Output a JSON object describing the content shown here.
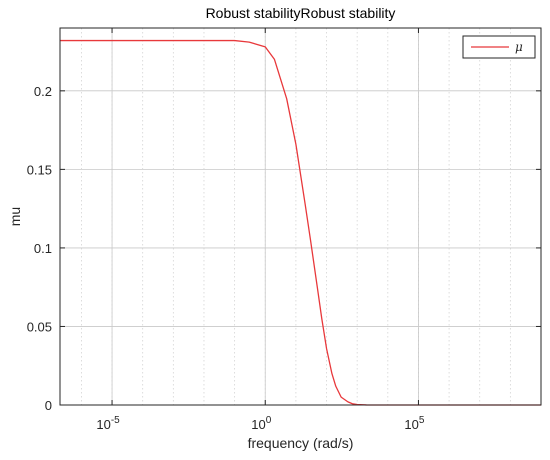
{
  "chart_data": {
    "type": "line",
    "title": "Robust stabilityRobust stability",
    "xlabel": "frequency (rad/s)",
    "ylabel": "mu",
    "xscale": "log",
    "xlim": [
      2e-07,
      1000000000.0
    ],
    "ylim": [
      0,
      0.24
    ],
    "xticks": [
      {
        "value": 1e-05,
        "base": "10",
        "exp": "-5"
      },
      {
        "value": 1,
        "base": "10",
        "exp": "0"
      },
      {
        "value": 100000.0,
        "base": "10",
        "exp": "5"
      }
    ],
    "yticks": [
      {
        "value": 0,
        "label": "0"
      },
      {
        "value": 0.05,
        "label": "0.05"
      },
      {
        "value": 0.1,
        "label": "0.1"
      },
      {
        "value": 0.15,
        "label": "0.15"
      },
      {
        "value": 0.2,
        "label": "0.2"
      }
    ],
    "grid": true,
    "minor_grid": true,
    "legend": {
      "position": "top-right",
      "entries": [
        "μ"
      ]
    },
    "series": [
      {
        "name": "μ",
        "color": "#e8383b",
        "x": [
          2e-07,
          1e-06,
          1e-05,
          0.0001,
          0.001,
          0.01,
          0.1,
          0.3,
          1,
          2,
          5,
          10,
          20,
          30,
          50,
          70,
          100,
          150,
          200,
          300,
          500,
          700,
          1000,
          2000,
          5000,
          10000,
          100000,
          1000000,
          1000000000.0
        ],
        "y": [
          0.232,
          0.232,
          0.232,
          0.232,
          0.232,
          0.232,
          0.232,
          0.231,
          0.228,
          0.22,
          0.195,
          0.166,
          0.128,
          0.105,
          0.075,
          0.055,
          0.036,
          0.02,
          0.012,
          0.005,
          0.002,
          0.0008,
          0.0003,
          5e-05,
          0.0,
          0.0,
          0.0,
          0.0,
          0.0
        ]
      }
    ]
  }
}
